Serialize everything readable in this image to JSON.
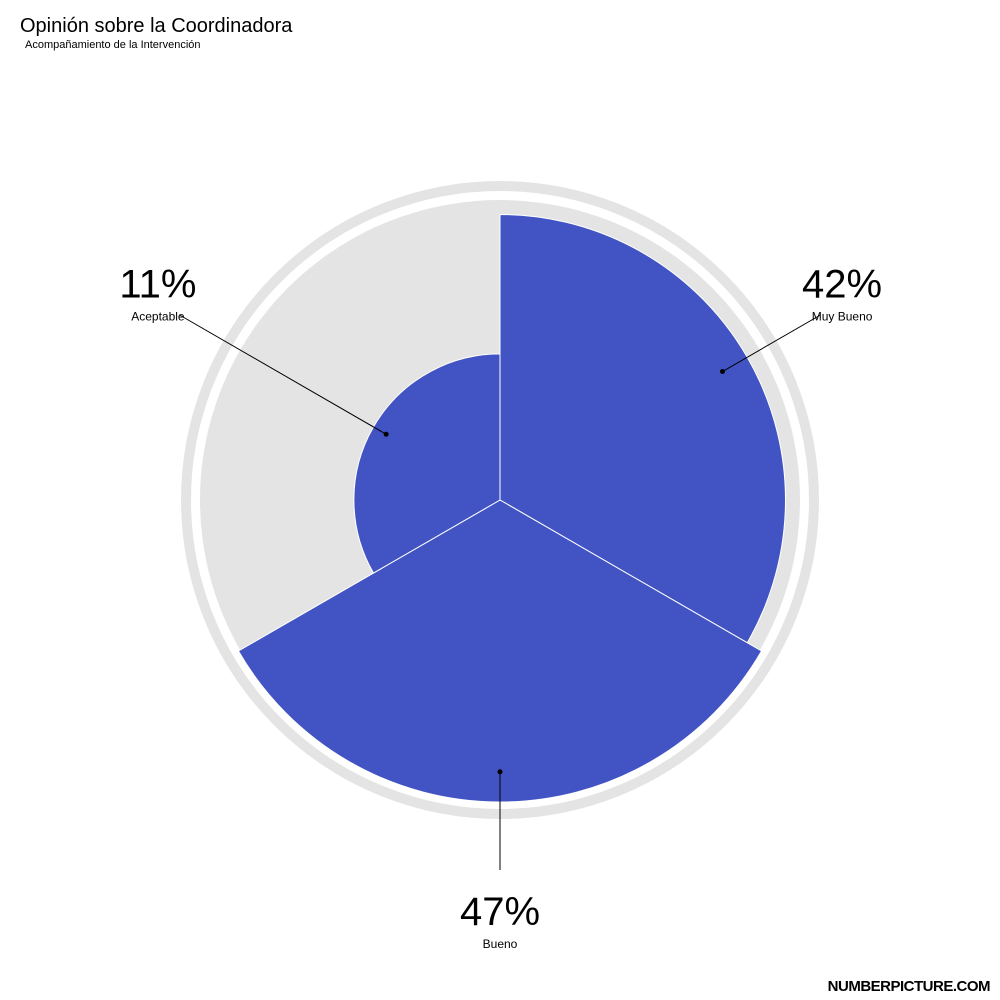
{
  "chart": {
    "title": "Opinión sobre la Coordinadora",
    "subtitle": "Acompañamiento de la Intervención"
  },
  "watermark": "NUMBERPICTURE.COM",
  "colors": {
    "slice": "#4254c3",
    "track": "#e4e4e4",
    "ring": "#e4e4e4"
  },
  "chart_data": {
    "type": "pie",
    "categories": [
      "Muy Bueno",
      "Bueno",
      "Aceptable"
    ],
    "values": [
      42,
      47,
      11
    ],
    "labels": [
      "42%",
      "Bueno",
      "Aceptable"
    ],
    "percent_labels": [
      "42%",
      "47%",
      "11%"
    ]
  }
}
